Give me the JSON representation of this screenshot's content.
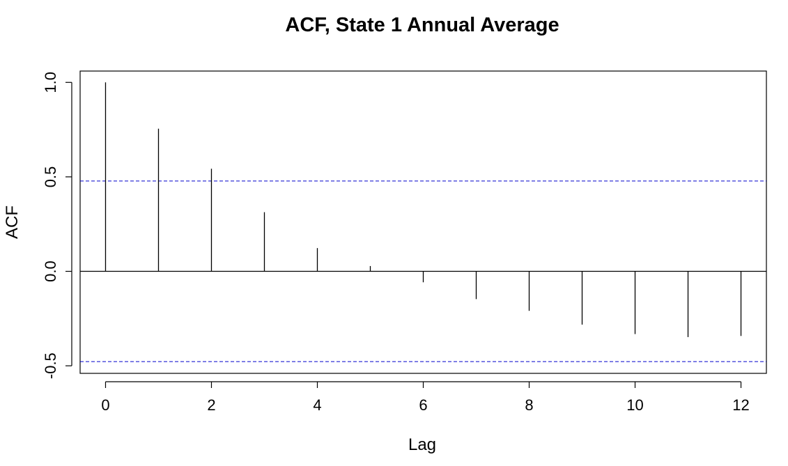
{
  "chart_data": {
    "type": "bar",
    "title": "ACF, State 1 Annual Average",
    "xlabel": "Lag",
    "ylabel": "ACF",
    "x": [
      0,
      1,
      2,
      3,
      4,
      5,
      6,
      7,
      8,
      9,
      10,
      11,
      12
    ],
    "values": [
      1.0,
      0.755,
      0.543,
      0.313,
      0.123,
      0.028,
      -0.058,
      -0.147,
      -0.209,
      -0.282,
      -0.332,
      -0.348,
      -0.342
    ],
    "xlim": [
      -0.48,
      12.48
    ],
    "ylim": [
      -0.54,
      1.06
    ],
    "x_ticks": [
      0,
      2,
      4,
      6,
      8,
      10,
      12
    ],
    "x_tick_labels": [
      "0",
      "2",
      "4",
      "6",
      "8",
      "10",
      "12"
    ],
    "y_ticks": [
      -0.5,
      0.0,
      0.5,
      1.0
    ],
    "y_tick_labels": [
      "-0.5",
      "0.0",
      "0.5",
      "1.0"
    ],
    "confidence_bounds": [
      0.478,
      -0.478
    ],
    "zero_line": true,
    "grid": false,
    "colors": {
      "bars": "#000000",
      "confidence": "#0000cc",
      "axis": "#000000"
    }
  }
}
